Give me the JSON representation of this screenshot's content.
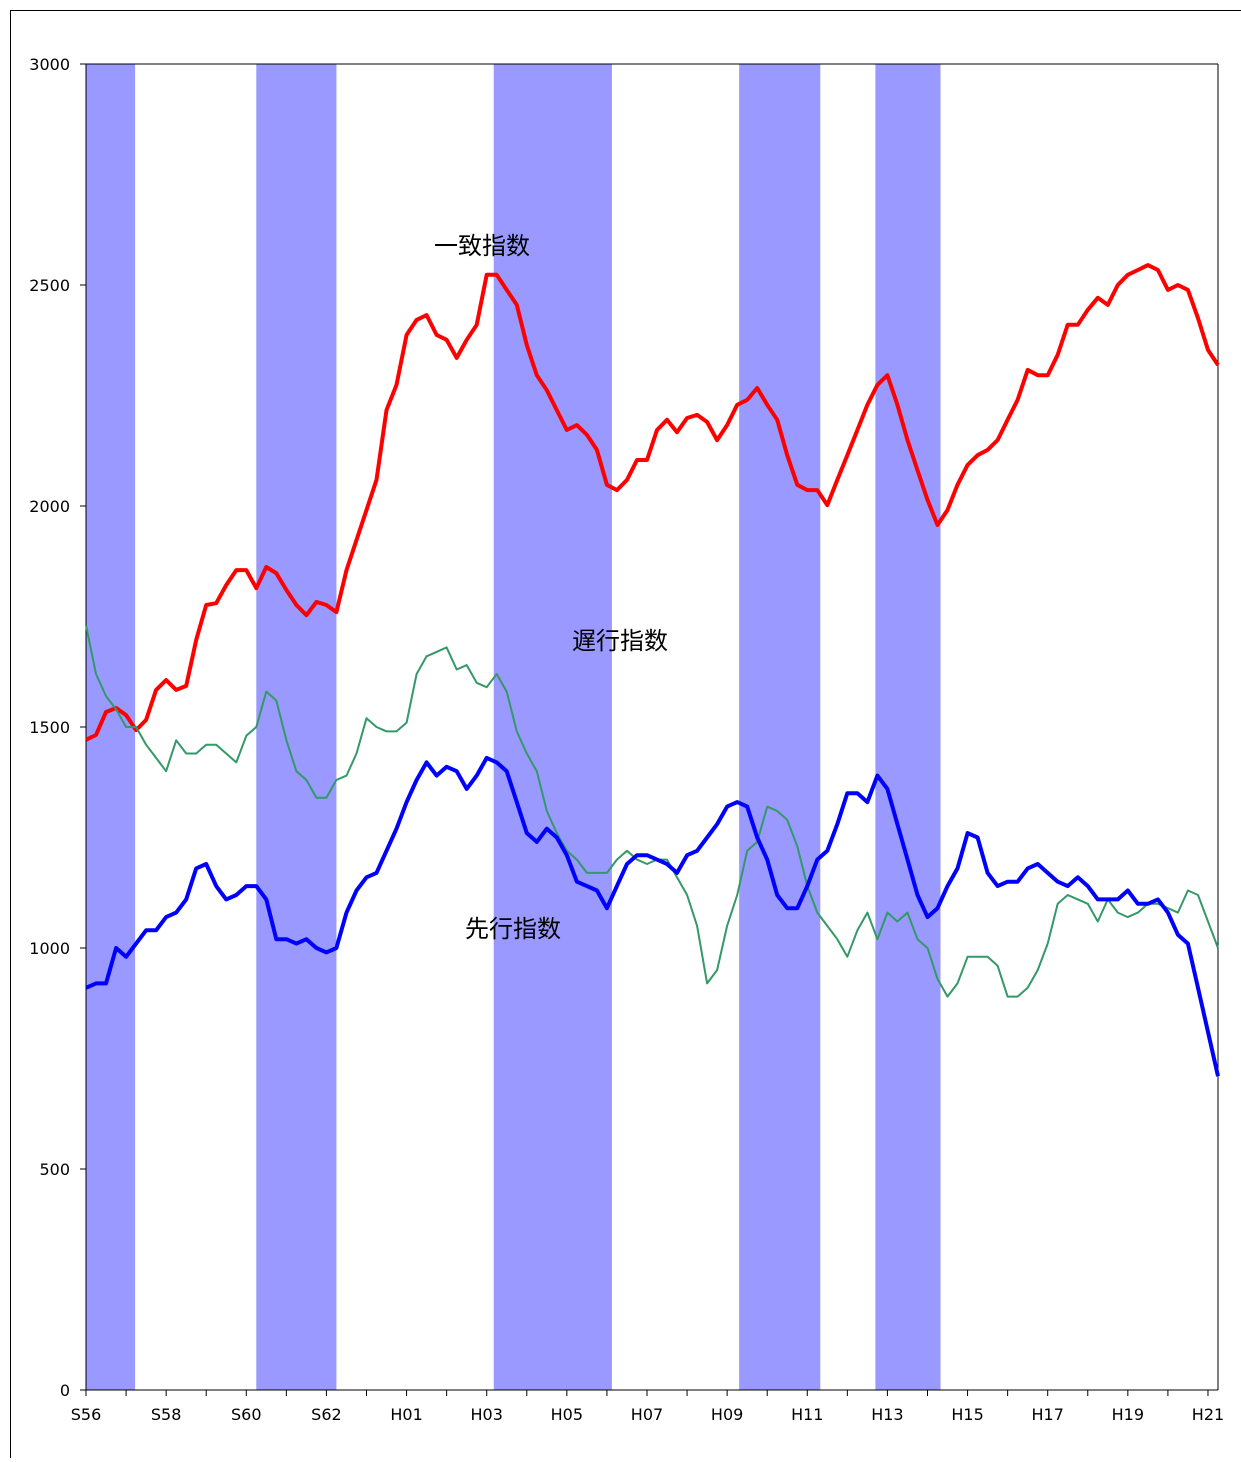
{
  "chart_data": {
    "type": "line",
    "categories": [
      "S56",
      null,
      null,
      null,
      null,
      null,
      null,
      null,
      "S58",
      null,
      null,
      null,
      null,
      null,
      null,
      null,
      "S60",
      null,
      null,
      null,
      null,
      null,
      null,
      null,
      "S62",
      null,
      null,
      null,
      null,
      null,
      null,
      null,
      "H01",
      null,
      null,
      null,
      null,
      null,
      null,
      null,
      "H03",
      null,
      null,
      null,
      null,
      null,
      null,
      null,
      "H05",
      null,
      null,
      null,
      null,
      null,
      null,
      null,
      "H07",
      null,
      null,
      null,
      null,
      null,
      null,
      null,
      "H09",
      null,
      null,
      null,
      null,
      null,
      null,
      null,
      "H11",
      null,
      null,
      null,
      null,
      null,
      null,
      null,
      "H13",
      null,
      null,
      null,
      null,
      null,
      null,
      null,
      "H15",
      null,
      null,
      null,
      null,
      null,
      null,
      null,
      "H17",
      null,
      null,
      null,
      null,
      null,
      null,
      null,
      "H19",
      null,
      null,
      null,
      null,
      null,
      null,
      null,
      "H21",
      null
    ],
    "ylim": [
      0,
      3000
    ],
    "yticks": [
      0,
      500,
      1000,
      1500,
      2000,
      2500,
      3000
    ],
    "grid": false,
    "shaded_periods": {
      "color": "#9999ff",
      "ranges": [
        [
          0,
          4.9
        ],
        [
          17.0,
          25.0
        ],
        [
          40.7,
          52.5
        ],
        [
          65.2,
          73.3
        ],
        [
          78.8,
          85.3
        ]
      ]
    },
    "series": [
      {
        "name": "一致指数",
        "color": "#ff0000",
        "width": 4,
        "values": [
          1471,
          1482,
          1534,
          1543,
          1527,
          1493,
          1516,
          1584,
          1606,
          1584,
          1593,
          1697,
          1776,
          1780,
          1821,
          1855,
          1855,
          1814,
          1862,
          1848,
          1810,
          1776,
          1753,
          1783,
          1776,
          1760,
          1855,
          1923,
          1991,
          2059,
          2217,
          2274,
          2387,
          2421,
          2432,
          2387,
          2376,
          2335,
          2376,
          2410,
          2523,
          2523,
          2489,
          2455,
          2364,
          2296,
          2262,
          2217,
          2172,
          2183,
          2161,
          2127,
          2048,
          2036,
          2059,
          2104,
          2104,
          2172,
          2195,
          2167,
          2199,
          2206,
          2190,
          2149,
          2183,
          2229,
          2240,
          2267,
          2229,
          2195,
          2115,
          2048,
          2036,
          2036,
          2002,
          2059,
          2115,
          2172,
          2229,
          2274,
          2296,
          2229,
          2149,
          2081,
          2014,
          1957,
          1991,
          2048,
          2093,
          2115,
          2127,
          2149,
          2195,
          2240,
          2308,
          2296,
          2296,
          2342,
          2410,
          2410,
          2444,
          2471,
          2455,
          2500,
          2523,
          2534,
          2545,
          2534,
          2489,
          2500,
          2489,
          2425,
          2353,
          2319
        ]
      },
      {
        "name": "遅行指数",
        "color": "#339966",
        "width": 2,
        "values": [
          1730,
          1620,
          1570,
          1540,
          1500,
          1500,
          1460,
          1430,
          1400,
          1470,
          1440,
          1440,
          1460,
          1460,
          1440,
          1420,
          1480,
          1500,
          1580,
          1560,
          1470,
          1400,
          1380,
          1340,
          1340,
          1380,
          1390,
          1440,
          1520,
          1500,
          1490,
          1490,
          1510,
          1620,
          1660,
          1670,
          1680,
          1630,
          1640,
          1600,
          1590,
          1620,
          1580,
          1490,
          1440,
          1400,
          1310,
          1260,
          1220,
          1200,
          1170,
          1170,
          1170,
          1200,
          1220,
          1200,
          1190,
          1200,
          1200,
          1160,
          1120,
          1050,
          920,
          950,
          1050,
          1120,
          1220,
          1240,
          1320,
          1310,
          1290,
          1230,
          1140,
          1080,
          1050,
          1020,
          980,
          1040,
          1080,
          1020,
          1080,
          1060,
          1080,
          1020,
          1000,
          930,
          890,
          920,
          980,
          980,
          980,
          960,
          890,
          890,
          910,
          950,
          1010,
          1100,
          1120,
          1110,
          1100,
          1060,
          1110,
          1080,
          1070,
          1080,
          1100,
          1100,
          1090,
          1080,
          1130,
          1120,
          1060,
          1000
        ]
      },
      {
        "name": "先行指数",
        "color": "#0000ff",
        "width": 4,
        "values": [
          910,
          920,
          920,
          1000,
          980,
          1010,
          1040,
          1040,
          1070,
          1080,
          1110,
          1180,
          1190,
          1140,
          1110,
          1120,
          1140,
          1140,
          1110,
          1020,
          1020,
          1010,
          1020,
          1000,
          990,
          1000,
          1080,
          1130,
          1160,
          1170,
          1220,
          1270,
          1330,
          1380,
          1420,
          1390,
          1410,
          1400,
          1360,
          1390,
          1430,
          1420,
          1400,
          1330,
          1260,
          1240,
          1270,
          1250,
          1210,
          1150,
          1140,
          1130,
          1090,
          1140,
          1190,
          1210,
          1210,
          1200,
          1190,
          1170,
          1210,
          1220,
          1250,
          1280,
          1320,
          1330,
          1320,
          1250,
          1200,
          1120,
          1090,
          1090,
          1140,
          1200,
          1220,
          1280,
          1350,
          1350,
          1330,
          1390,
          1360,
          1280,
          1200,
          1120,
          1070,
          1090,
          1140,
          1180,
          1260,
          1250,
          1170,
          1140,
          1150,
          1150,
          1180,
          1190,
          1170,
          1150,
          1140,
          1160,
          1140,
          1110,
          1110,
          1110,
          1130,
          1100,
          1100,
          1110,
          1080,
          1030,
          1010,
          910,
          810,
          710
        ]
      }
    ]
  }
}
